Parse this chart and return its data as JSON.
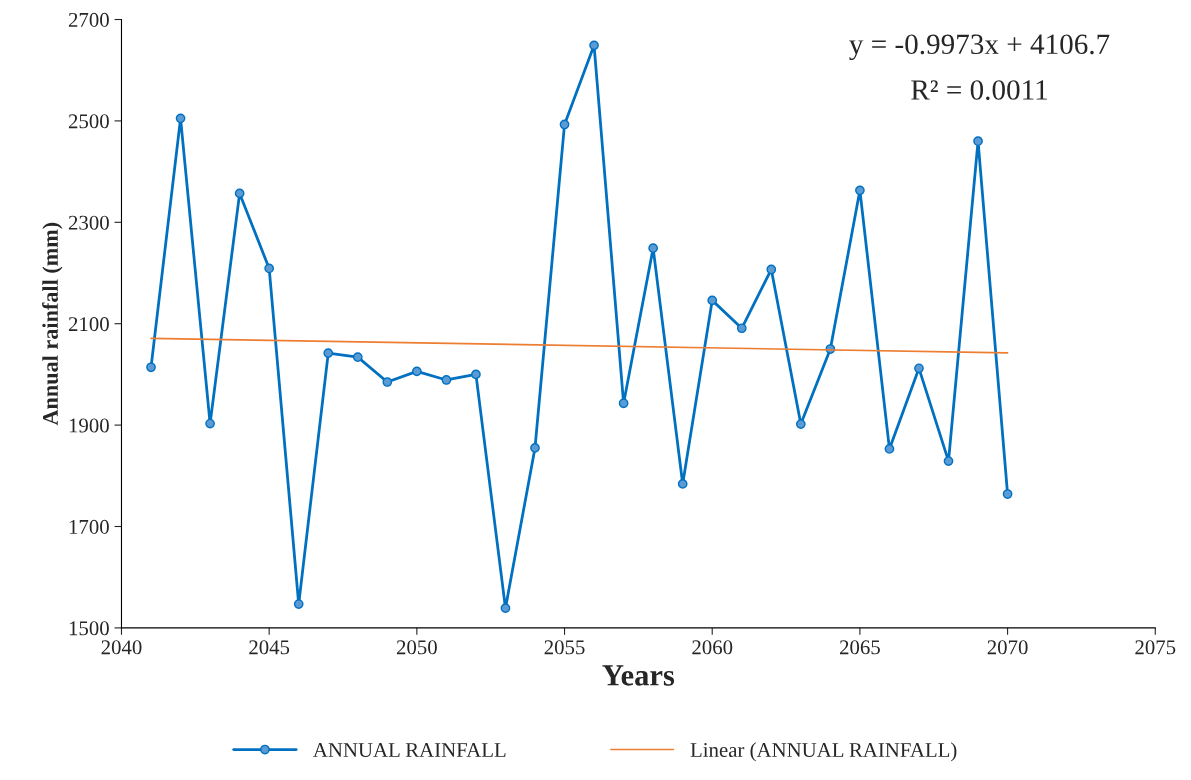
{
  "chart_data": {
    "type": "line",
    "xlabel": "Years",
    "ylabel": "Annual rainfall (mm)",
    "xlim": [
      2040,
      2075
    ],
    "xticks": [
      2040,
      2045,
      2050,
      2055,
      2060,
      2065,
      2070,
      2075
    ],
    "ylim": [
      1500,
      2700
    ],
    "yticks": [
      1500,
      1700,
      1900,
      2100,
      2300,
      2500,
      2700
    ],
    "grid": false,
    "legend": "bottom",
    "annotations": [
      "y = -0.9973x + 4106.7",
      "R² = 0.0011"
    ],
    "series": [
      {
        "name": "ANNUAL RAINFALL",
        "color": "#0070c0",
        "marker": "circle",
        "x": [
          2041,
          2042,
          2043,
          2044,
          2045,
          2046,
          2047,
          2048,
          2049,
          2050,
          2051,
          2052,
          2053,
          2054,
          2055,
          2056,
          2057,
          2058,
          2059,
          2060,
          2061,
          2062,
          2063,
          2064,
          2065,
          2066,
          2067,
          2068,
          2069,
          2070
        ],
        "values": [
          2014,
          2505,
          1903,
          2357,
          2209,
          1547,
          2042,
          2034,
          1985,
          2006,
          1989,
          2000,
          1539,
          1855,
          2493,
          2649,
          1943,
          2249,
          1784,
          2146,
          2091,
          2207,
          1902,
          2050,
          2363,
          1853,
          2012,
          1829,
          2460,
          1764
        ]
      },
      {
        "name": "Linear (ANNUAL RAINFALL)",
        "color": "#ed7d31",
        "marker": "none",
        "x": [
          2041,
          2070
        ],
        "values": [
          2071.2,
          2042.3
        ]
      }
    ]
  }
}
